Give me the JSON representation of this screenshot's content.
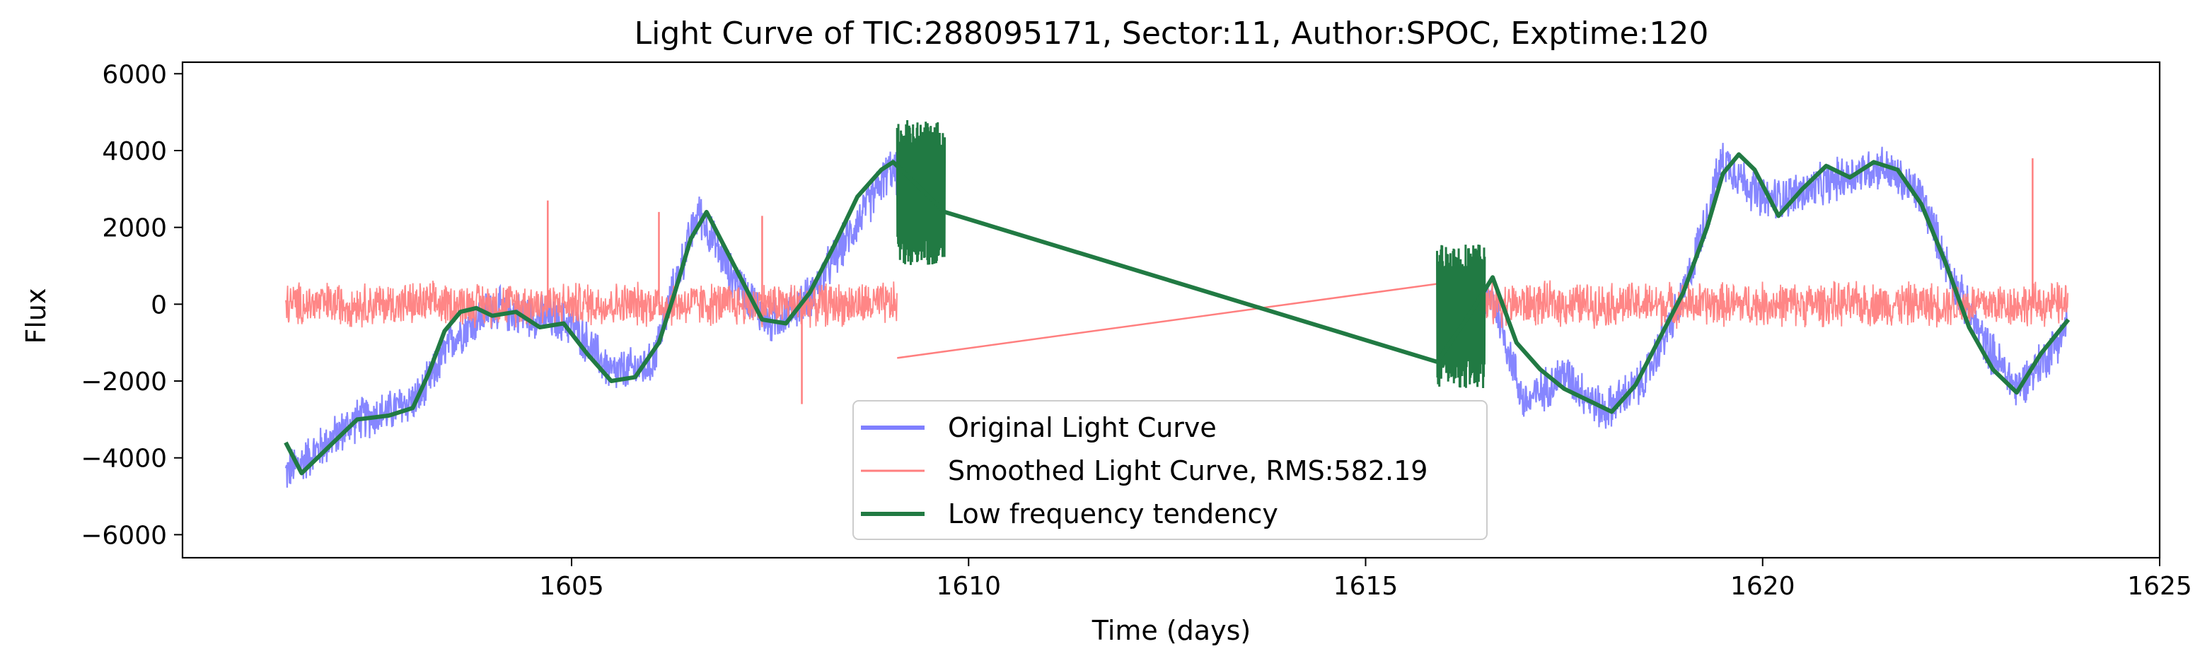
{
  "chart_data": {
    "type": "line",
    "title": "Light Curve of TIC:288095171, Sector:11, Author:SPOC, Exptime:120",
    "xlabel": "Time (days)",
    "ylabel": "Flux",
    "xlim": [
      1600.1,
      1625.0
    ],
    "ylim": [
      -6600,
      6300
    ],
    "xticks": [
      1605,
      1610,
      1615,
      1620,
      1625
    ],
    "yticks": [
      -6000,
      -4000,
      -2000,
      0,
      2000,
      4000,
      6000
    ],
    "xtick_labels": [
      "1605",
      "1610",
      "1615",
      "1620",
      "1625"
    ],
    "ytick_labels": [
      "−6000",
      "−4000",
      "−2000",
      "0",
      "2000",
      "4000",
      "6000"
    ],
    "grid": false,
    "legend_position": "lower center",
    "series": [
      {
        "name": "Original Light Curve",
        "color": "#7f7fff",
        "style": "dense noisy line, alpha 0.5",
        "noise_amplitude": 650,
        "segments": [
          {
            "x": [
              1601.4,
              1601.8,
              1602.3,
              1602.7,
              1603.1,
              1603.5,
              1604.0,
              1604.5,
              1605.0,
              1605.5,
              1606.0,
              1606.3,
              1606.6,
              1607.0,
              1607.5,
              1608.0,
              1608.5,
              1609.0,
              1609.1
            ],
            "y": [
              -4400,
              -3800,
              -3000,
              -2800,
              -2400,
              -900,
              -100,
              -300,
              -500,
              -1800,
              -1600,
              500,
              2400,
              800,
              -500,
              200,
              1800,
              3500,
              3400
            ]
          },
          {
            "x": [
              1615.9,
              1616.2,
              1616.6,
              1617.0,
              1617.5,
              1618.0,
              1618.5,
              1619.0,
              1619.5,
              1620.0,
              1620.5,
              1621.0,
              1621.5,
              1622.0,
              1622.4,
              1622.8,
              1623.2,
              1623.6,
              1623.85
            ],
            "y": [
              -1500,
              -500,
              200,
              -2600,
              -1800,
              -2800,
              -2000,
              200,
              3800,
              2700,
              2900,
              3300,
              3600,
              2800,
              600,
              -1000,
              -2200,
              -1300,
              -500
            ]
          }
        ]
      },
      {
        "name": "Smoothed Light Curve, RMS:582.19",
        "color": "#ff7f7f",
        "style": "thin noisy line around zero",
        "noise_amplitude": 650,
        "segments": [
          {
            "x": [
              1601.4,
              1603.0,
              1605.0,
              1607.0,
              1609.1
            ],
            "y": [
              0,
              0,
              0,
              0,
              0
            ]
          },
          {
            "x": [
              1615.9,
              1617.0,
              1619.0,
              1621.0,
              1623.85
            ],
            "y": [
              0,
              0,
              0,
              0,
              0
            ]
          }
        ],
        "connector": {
          "x": [
            1609.1,
            1616.5
          ],
          "y": [
            -1400,
            700
          ]
        },
        "spikes": [
          {
            "x": 1604.7,
            "y": 2700
          },
          {
            "x": 1606.1,
            "y": 2400
          },
          {
            "x": 1607.4,
            "y": 2300
          },
          {
            "x": 1623.4,
            "y": 3800
          },
          {
            "x": 1607.9,
            "y": -2600
          }
        ]
      },
      {
        "name": "Low frequency tendency",
        "color": "#217a43",
        "style": "thick smooth line",
        "x": [
          1601.4,
          1601.6,
          1601.9,
          1602.3,
          1602.7,
          1603.0,
          1603.2,
          1603.4,
          1603.6,
          1603.8,
          1604.0,
          1604.3,
          1604.6,
          1604.9,
          1605.2,
          1605.5,
          1605.8,
          1606.1,
          1606.3,
          1606.5,
          1606.7,
          1606.9,
          1607.1,
          1607.4,
          1607.7,
          1608.0,
          1608.3,
          1608.6,
          1608.9,
          1609.05,
          1609.7,
          1615.9,
          1616.3,
          1616.6,
          1616.9,
          1617.2,
          1617.5,
          1617.8,
          1618.1,
          1618.4,
          1618.7,
          1619.0,
          1619.3,
          1619.5,
          1619.7,
          1619.9,
          1620.2,
          1620.5,
          1620.8,
          1621.1,
          1621.4,
          1621.7,
          1622.0,
          1622.3,
          1622.6,
          1622.9,
          1623.2,
          1623.5,
          1623.85
        ],
        "y": [
          -3600,
          -4400,
          -3800,
          -3000,
          -2900,
          -2700,
          -1800,
          -700,
          -200,
          -100,
          -300,
          -200,
          -600,
          -500,
          -1300,
          -2000,
          -1900,
          -1000,
          300,
          1700,
          2400,
          1600,
          800,
          -400,
          -500,
          300,
          1500,
          2800,
          3500,
          3700,
          2400,
          -1500,
          -300,
          700,
          -1000,
          -1700,
          -2200,
          -2500,
          -2800,
          -2100,
          -900,
          300,
          2000,
          3400,
          3900,
          3500,
          2300,
          3000,
          3600,
          3300,
          3700,
          3500,
          2600,
          1100,
          -600,
          -1700,
          -2300,
          -1300,
          -400
        ],
        "burst_segments": [
          {
            "x": [
              1609.1,
              1609.7
            ],
            "center": 2900,
            "amplitude": 1900
          },
          {
            "x": [
              1615.9,
              1616.5
            ],
            "center": -300,
            "amplitude": 1900
          }
        ]
      }
    ]
  }
}
